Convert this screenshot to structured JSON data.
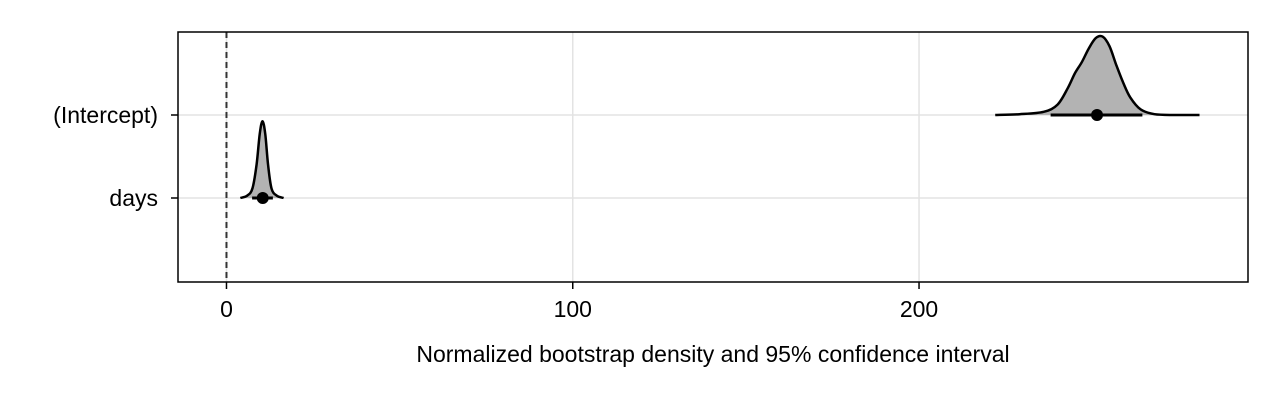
{
  "chart_data": {
    "type": "density",
    "title": "",
    "xlabel": "Normalized bootstrap density and 95% confidence interval",
    "ylabel": "",
    "xlim": [
      -14,
      295
    ],
    "x_ticks": [
      {
        "value": 0,
        "label": "0"
      },
      {
        "value": 100,
        "label": "100"
      },
      {
        "value": 200,
        "label": "200"
      }
    ],
    "grid": true,
    "reference_line": {
      "x": 0,
      "style": "dashed"
    },
    "fill_color": "#b3b3b3",
    "line_color": "#000000",
    "series": [
      {
        "label": "(Intercept)",
        "estimate": 251.4,
        "ci": [
          238,
          264.5
        ],
        "density_range": [
          222,
          281
        ],
        "density_curve": [
          [
            222,
            0.0
          ],
          [
            229,
            0.01
          ],
          [
            236,
            0.04
          ],
          [
            240,
            0.13
          ],
          [
            243,
            0.34
          ],
          [
            245,
            0.52
          ],
          [
            247,
            0.66
          ],
          [
            249,
            0.83
          ],
          [
            251,
            0.96
          ],
          [
            253,
            0.98
          ],
          [
            255,
            0.86
          ],
          [
            257,
            0.62
          ],
          [
            259,
            0.4
          ],
          [
            261,
            0.22
          ],
          [
            264,
            0.07
          ],
          [
            268,
            0.01
          ],
          [
            274,
            0.0
          ],
          [
            281,
            0.0
          ]
        ]
      },
      {
        "label": "days",
        "estimate": 10.47,
        "ci": [
          7.4,
          13.4
        ],
        "density_range": [
          4,
          16.5
        ],
        "density_curve": [
          [
            4,
            0.0
          ],
          [
            6,
            0.03
          ],
          [
            7.5,
            0.12
          ],
          [
            8.7,
            0.42
          ],
          [
            9.6,
            0.8
          ],
          [
            10.4,
            0.96
          ],
          [
            11.2,
            0.8
          ],
          [
            12,
            0.42
          ],
          [
            13,
            0.12
          ],
          [
            14.5,
            0.03
          ],
          [
            16.5,
            0.0
          ]
        ]
      }
    ]
  }
}
